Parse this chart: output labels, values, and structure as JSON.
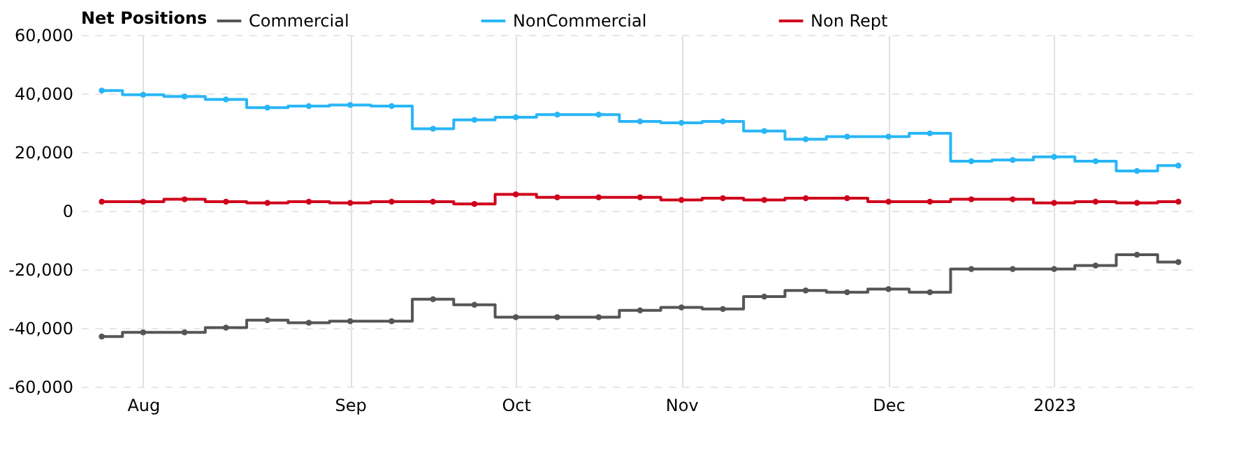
{
  "chart_data": {
    "type": "step",
    "legend_title": "Net Positions",
    "legend": "top",
    "grid": true,
    "marker": "circle",
    "line_style": "solid",
    "x": [
      "2022-07-26",
      "2022-08-02",
      "2022-08-09",
      "2022-08-16",
      "2022-08-23",
      "2022-08-30",
      "2022-09-06",
      "2022-09-13",
      "2022-09-20",
      "2022-09-27",
      "2022-10-04",
      "2022-10-11",
      "2022-10-18",
      "2022-10-25",
      "2022-11-01",
      "2022-11-08",
      "2022-11-15",
      "2022-11-22",
      "2022-11-29",
      "2022-12-06",
      "2022-12-13",
      "2022-12-20",
      "2022-12-27",
      "2023-01-03",
      "2023-01-10",
      "2023-01-17",
      "2023-01-24"
    ],
    "xlim": [
      "2022-07-22T12:00",
      "2023-01-27T12:00"
    ],
    "xticks": [
      {
        "value": "2022-08-02",
        "label": "Aug"
      },
      {
        "value": "2022-09-06",
        "label": "Sep"
      },
      {
        "value": "2022-10-04",
        "label": "Oct"
      },
      {
        "value": "2022-11-01",
        "label": "Nov"
      },
      {
        "value": "2022-12-06",
        "label": "Dec"
      },
      {
        "value": "2023-01-03",
        "label": "2023"
      }
    ],
    "ylim": [
      -60000,
      60000
    ],
    "yticks": [
      {
        "value": -60000,
        "label": "-60,000"
      },
      {
        "value": -40000,
        "label": "-40,000"
      },
      {
        "value": -20000,
        "label": "-20,000"
      },
      0,
      {
        "value": 20000,
        "label": "20,000"
      },
      {
        "value": 40000,
        "label": "40,000"
      },
      {
        "value": 60000,
        "label": "60,000"
      }
    ],
    "series": [
      {
        "name": "Commercial",
        "color": "#555555",
        "values": [
          -42900,
          -41500,
          -41500,
          -39900,
          -37300,
          -38200,
          -37700,
          -37700,
          -30200,
          -32100,
          -36300,
          -36300,
          -36300,
          -34000,
          -33000,
          -33500,
          -29300,
          -27200,
          -27800,
          -26700,
          -27800,
          -19900,
          -19900,
          -19900,
          -18700,
          -15000,
          -17500
        ]
      },
      {
        "name": "NonCommercial",
        "color": "#29b6f6",
        "values": [
          41000,
          39600,
          39000,
          38000,
          35200,
          35700,
          36100,
          35700,
          28000,
          31000,
          31900,
          32800,
          32800,
          30500,
          30000,
          30500,
          27200,
          24400,
          25300,
          25300,
          26400,
          16900,
          17300,
          18400,
          16900,
          13600,
          15400
        ]
      },
      {
        "name": "Non Rept",
        "color": "#d0021b",
        "values": [
          3100,
          3100,
          3900,
          3100,
          2700,
          3100,
          2700,
          3100,
          3100,
          2300,
          5600,
          4600,
          4600,
          4600,
          3700,
          4300,
          3700,
          4300,
          4300,
          3100,
          3100,
          3900,
          3900,
          2700,
          3100,
          2700,
          3100
        ]
      }
    ]
  }
}
